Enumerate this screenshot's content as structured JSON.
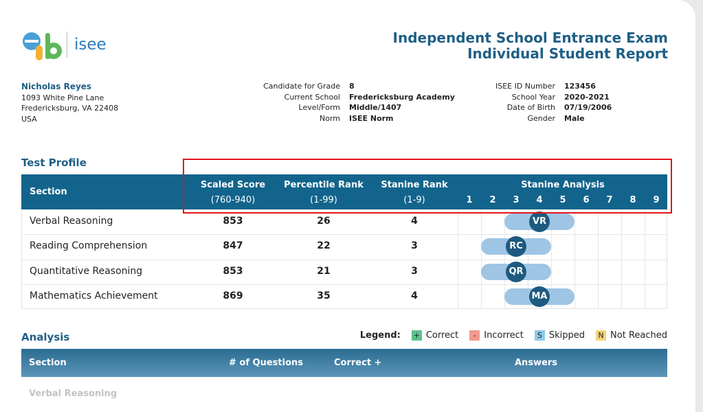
{
  "header": {
    "logo_text": "isee",
    "title": "Independent School Entrance Exam",
    "subtitle": "Individual Student Report"
  },
  "student": {
    "name": "Nicholas Reyes",
    "address": [
      "1093 White Pine Lane",
      "Fredericksburg, VA 22408",
      "USA"
    ]
  },
  "details": [
    [
      {
        "label": "Candidate for Grade",
        "value": "8"
      },
      {
        "label": "Current School",
        "value": "Fredericksburg Academy"
      },
      {
        "label": "Level/Form",
        "value": "Middle/1407"
      },
      {
        "label": "Norm",
        "value": "ISEE Norm"
      }
    ],
    [
      {
        "label": "ISEE ID Number",
        "value": "123456"
      },
      {
        "label": "School Year",
        "value": "2020-2021"
      },
      {
        "label": "Date of Birth",
        "value": "07/19/2006"
      },
      {
        "label": "Gender",
        "value": "Male"
      }
    ]
  ],
  "test_profile": {
    "title": "Test Profile",
    "columns": [
      {
        "title": "Section"
      },
      {
        "title": "Scaled Score",
        "range": "(760-940)"
      },
      {
        "title": "Percentile Rank",
        "range": "(1-99)"
      },
      {
        "title": "Stanine Rank",
        "range": "(1-9)"
      },
      {
        "title": "Stanine Analysis"
      }
    ],
    "stanines": [
      1,
      2,
      3,
      4,
      5,
      6,
      7,
      8,
      9
    ],
    "rows": [
      {
        "section": "Verbal Reasoning",
        "scaled": 853,
        "percentile": 26,
        "stanine": 4,
        "code": "VR"
      },
      {
        "section": "Reading Comprehension",
        "scaled": 847,
        "percentile": 22,
        "stanine": 3,
        "code": "RC"
      },
      {
        "section": "Quantitative Reasoning",
        "scaled": 853,
        "percentile": 21,
        "stanine": 3,
        "code": "QR"
      },
      {
        "section": "Mathematics Achievement",
        "scaled": 869,
        "percentile": 35,
        "stanine": 4,
        "code": "MA"
      }
    ]
  },
  "analysis": {
    "title": "Analysis",
    "legend_title": "Legend:",
    "legend": [
      {
        "symbol": "+",
        "label": "Correct",
        "color": "#5cc08a"
      },
      {
        "symbol": "-",
        "label": "Incorrect",
        "color": "#ef9a8e"
      },
      {
        "symbol": "S",
        "label": "Skipped",
        "color": "#8ccbe8"
      },
      {
        "symbol": "N",
        "label": "Not Reached",
        "color": "#f2d57a"
      }
    ],
    "columns": [
      "Section",
      "# of Questions",
      "Correct +",
      "Answers"
    ],
    "rows": [
      "Verbal Reasoning"
    ]
  }
}
